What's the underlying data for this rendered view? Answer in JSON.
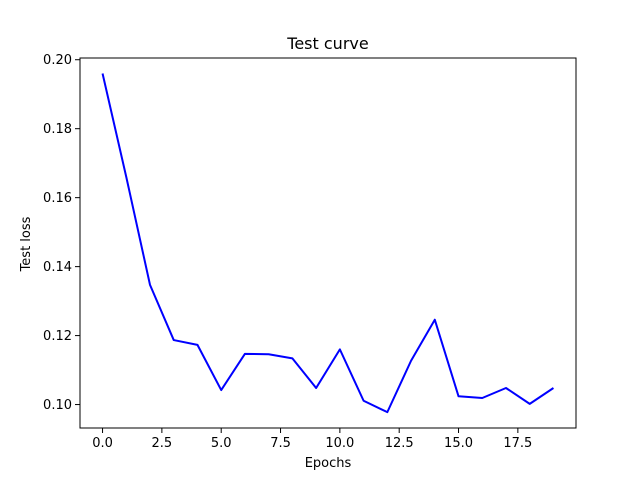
{
  "chart_data": {
    "type": "line",
    "title": "Test curve",
    "xlabel": "Epochs",
    "ylabel": "Test loss",
    "xlim": [
      -0.95,
      19.95
    ],
    "ylim": [
      0.0932,
      0.2005
    ],
    "xticks": [
      0.0,
      2.5,
      5.0,
      7.5,
      10.0,
      12.5,
      15.0,
      17.5
    ],
    "xtick_labels": [
      "0.0",
      "2.5",
      "5.0",
      "7.5",
      "10.0",
      "12.5",
      "15.0",
      "17.5"
    ],
    "yticks": [
      0.1,
      0.12,
      0.14,
      0.16,
      0.18,
      0.2
    ],
    "ytick_labels": [
      "0.10",
      "0.12",
      "0.14",
      "0.16",
      "0.18",
      "0.20"
    ],
    "grid": false,
    "legend": "none",
    "series": [
      {
        "color": "#0000ff",
        "x": [
          0,
          1,
          2,
          3,
          4,
          5,
          6,
          7,
          8,
          9,
          10,
          11,
          12,
          13,
          14,
          15,
          16,
          17,
          18,
          19
        ],
        "values": [
          0.196,
          0.166,
          0.1347,
          0.1187,
          0.1173,
          0.1042,
          0.1147,
          0.1146,
          0.1134,
          0.1048,
          0.116,
          0.1011,
          0.0978,
          0.1127,
          0.1246,
          0.1024,
          0.1019,
          0.1048,
          0.1002,
          0.1048
        ]
      }
    ]
  }
}
